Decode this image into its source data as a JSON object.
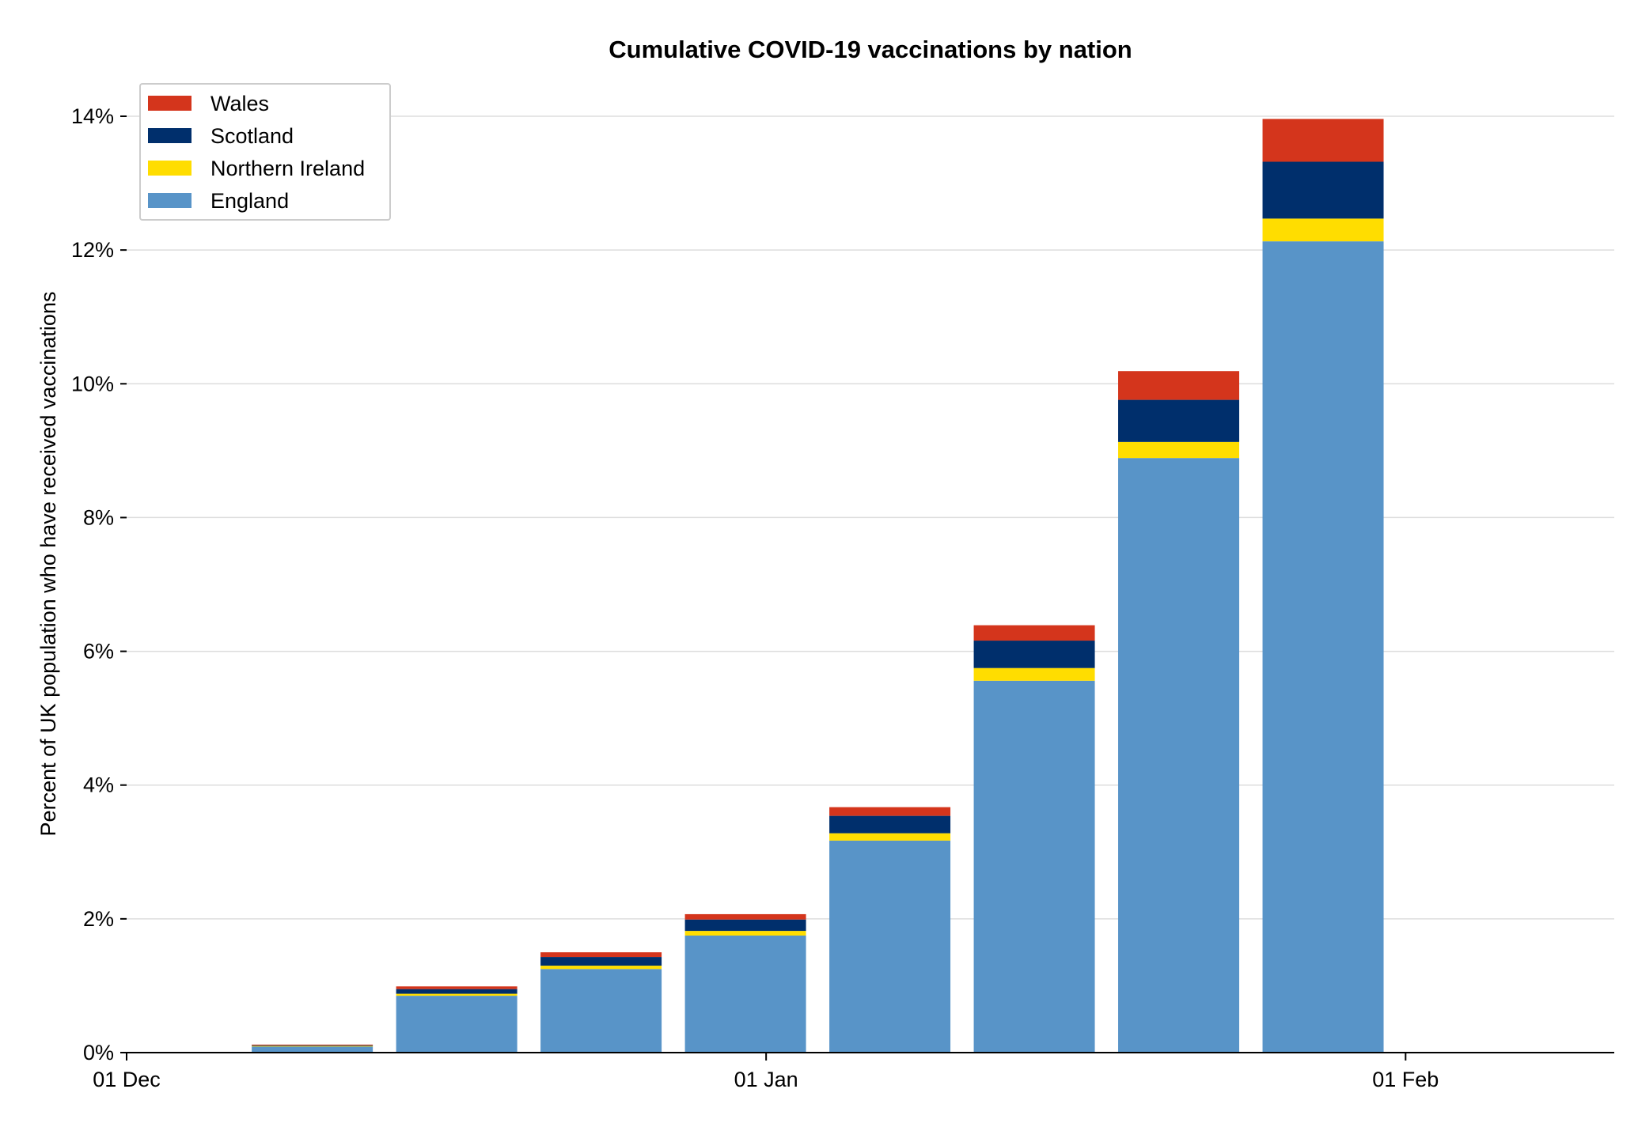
{
  "chart_data": {
    "type": "bar",
    "stacked": true,
    "title": "Cumulative COVID-19 vaccinations by nation",
    "xlabel": "",
    "ylabel": "Percent of UK population who have received vaccinations",
    "x_type": "date",
    "xlim": [
      "2020-12-01",
      "2021-02-11"
    ],
    "ylim": [
      0,
      14.4
    ],
    "y_ticks": [
      0,
      2,
      4,
      6,
      8,
      10,
      12,
      14
    ],
    "y_tick_labels": [
      "0%",
      "2%",
      "4%",
      "6%",
      "8%",
      "10%",
      "12%",
      "14%"
    ],
    "x_ticks": [
      "2020-12-01",
      "2021-01-01",
      "2021-02-01"
    ],
    "x_tick_labels": [
      "01 Dec",
      "01 Jan",
      "01 Feb"
    ],
    "grid": "horizontal",
    "legend_position": "top-left",
    "dates": [
      "2020-12-10",
      "2020-12-17",
      "2020-12-24",
      "2020-12-31",
      "2021-01-07",
      "2021-01-14",
      "2021-01-21",
      "2021-01-28"
    ],
    "series": [
      {
        "name": "England",
        "color": "#5894c8",
        "values": [
          0.09,
          0.85,
          1.25,
          1.75,
          3.17,
          5.56,
          8.89,
          12.13
        ]
      },
      {
        "name": "Northern Ireland",
        "color": "#ffdd00",
        "values": [
          0.01,
          0.03,
          0.05,
          0.07,
          0.11,
          0.19,
          0.24,
          0.34
        ]
      },
      {
        "name": "Scotland",
        "color": "#002f6c",
        "values": [
          0.01,
          0.07,
          0.13,
          0.17,
          0.26,
          0.41,
          0.63,
          0.85
        ]
      },
      {
        "name": "Wales",
        "color": "#d4351c",
        "values": [
          0.01,
          0.04,
          0.07,
          0.08,
          0.13,
          0.23,
          0.43,
          0.64
        ]
      }
    ],
    "legend_order": [
      "Wales",
      "Scotland",
      "Northern Ireland",
      "England"
    ]
  }
}
